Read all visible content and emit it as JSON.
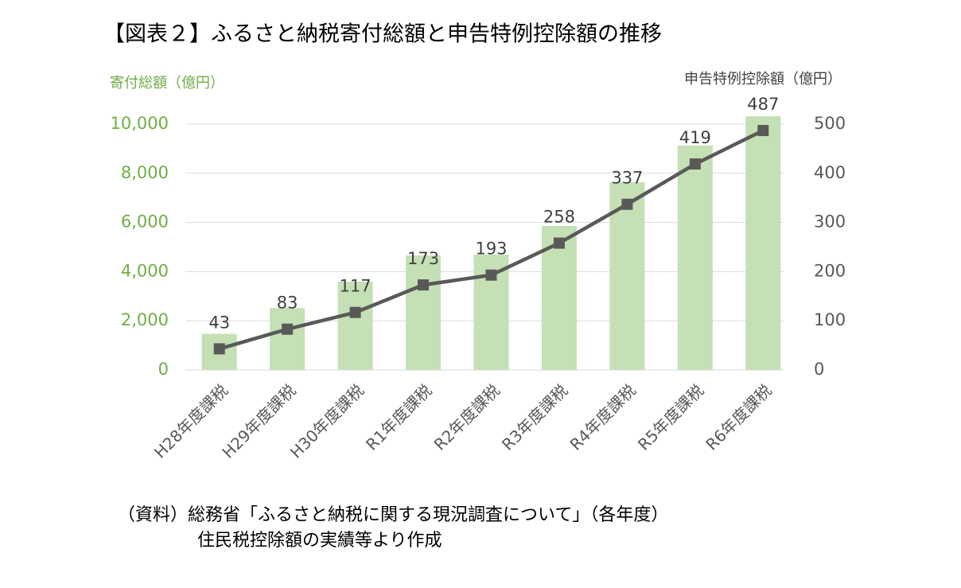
{
  "chart_data": {
    "type": "combo",
    "title": "【図表２】ふるさと納税寄付総額と申告特例控除額の推移",
    "y_label": "寄付総額（億円）",
    "y2_label": "申告特例控除額（億円）",
    "categories": [
      "H28年度課税",
      "H29年度課税",
      "H30年度課税",
      "R1年度課税",
      "R2年度課税",
      "R3年度課税",
      "R4年度課税",
      "R5年度課税",
      "R6年度課税"
    ],
    "series": [
      {
        "name": "寄付総額",
        "type": "bar",
        "axis": "y",
        "color": "#c5e0b4",
        "values": [
          1470,
          2520,
          3590,
          4660,
          4690,
          5860,
          7640,
          9130,
          10320
        ]
      },
      {
        "name": "申告特例控除額",
        "type": "line",
        "axis": "y2",
        "color": "#595959",
        "values": [
          43,
          83,
          117,
          173,
          193,
          258,
          337,
          419,
          487
        ]
      }
    ],
    "ylim": [
      0,
      10000
    ],
    "yticks": [
      0,
      {
        "value": 2000,
        "label": "2,000"
      },
      {
        "value": 4000,
        "label": "4,000"
      },
      {
        "value": 6000,
        "label": "6,000"
      },
      {
        "value": 8000,
        "label": "8,000"
      },
      {
        "value": 10000,
        "label": "10,000"
      }
    ],
    "y2lim": [
      0,
      500
    ],
    "y2ticks": [
      0,
      100,
      200,
      300,
      400,
      500
    ],
    "grid": true,
    "source": [
      "（資料）総務省「ふるさと納税に関する現況調査について」（各年度）",
      "住民税控除額の実績等より作成"
    ]
  }
}
